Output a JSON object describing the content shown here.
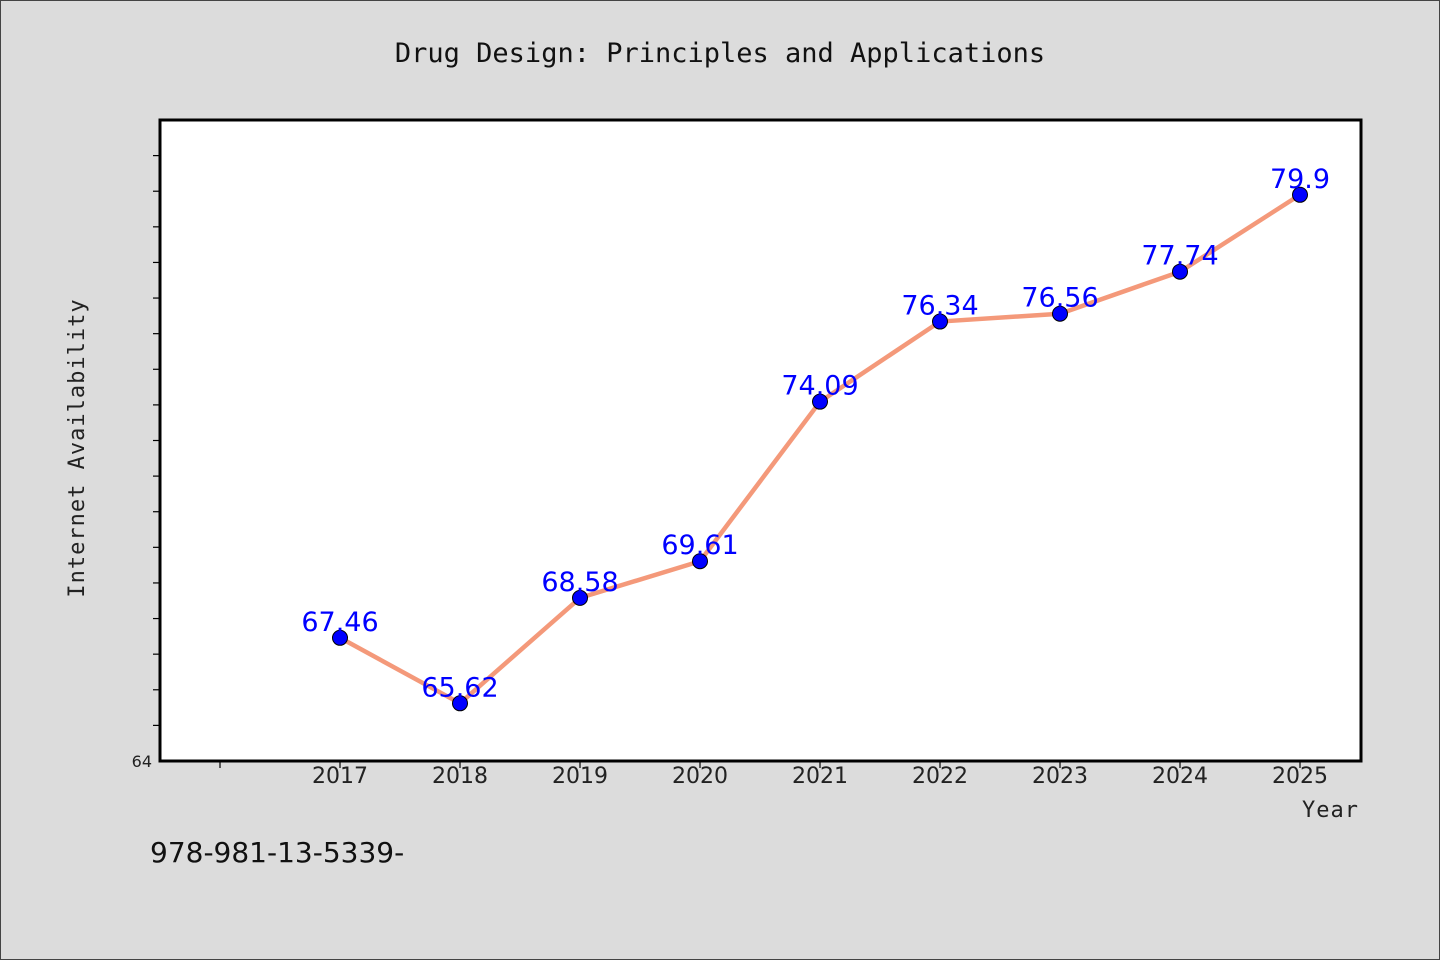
{
  "chart_data": {
    "type": "line",
    "title": "Drug Design: Principles and Applications",
    "xlabel": "Year",
    "ylabel": "Internet Availability",
    "categories": [
      "2017",
      "2018",
      "2019",
      "2020",
      "2021",
      "2022",
      "2023",
      "2024",
      "2025"
    ],
    "values": [
      67.46,
      65.62,
      68.58,
      69.61,
      74.09,
      76.34,
      76.56,
      77.74,
      79.9
    ],
    "data_labels": [
      "67.46",
      "65.62",
      "68.58",
      "69.61",
      "74.09",
      "76.34",
      "76.56",
      "77.74",
      "79.9"
    ],
    "y_tick_labels": [
      "64"
    ],
    "ylim": [
      64,
      82
    ],
    "grid": false,
    "line_color": "#f4997a",
    "marker_color": "#0000ff",
    "label_color": "#0000ff"
  },
  "footnote": "978-981-13-5339-"
}
